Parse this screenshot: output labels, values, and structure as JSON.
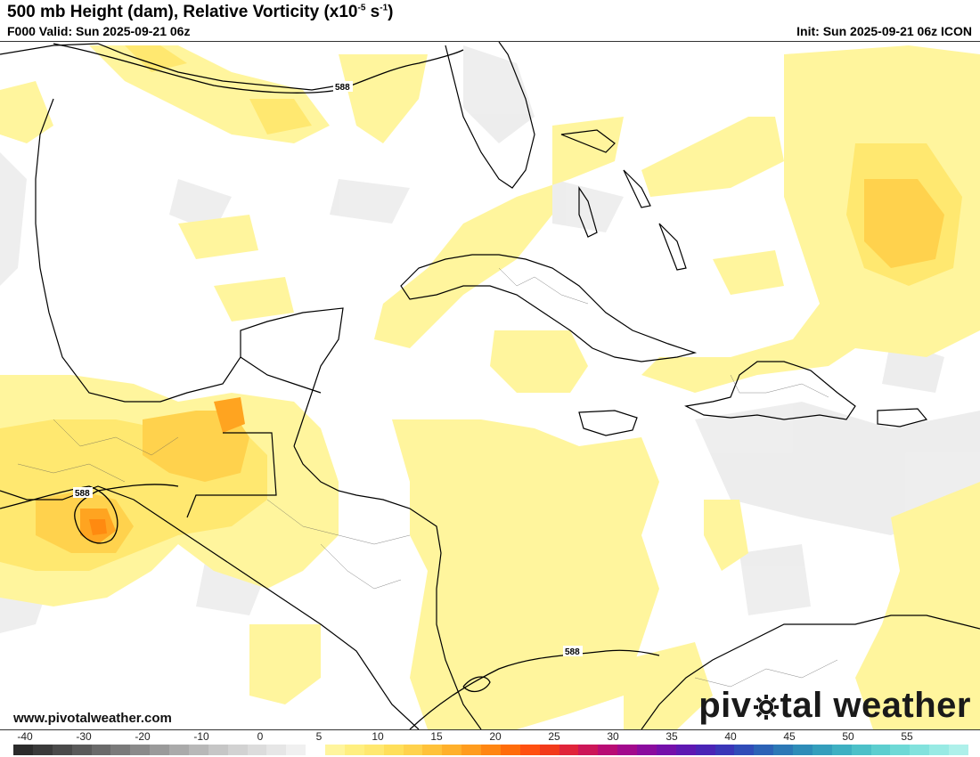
{
  "header": {
    "title": "500 mb Height (dam), Relative Vorticity (x10",
    "title_exp": "-5",
    "title_unit": " s",
    "title_exp2": "-1",
    "title_end": ")",
    "valid": "F000 Valid: Sun 2025-09-21 06z",
    "init": "Init: Sun 2025-09-21 06z ICON"
  },
  "map": {
    "contour_labels": [
      "588",
      "588",
      "588"
    ],
    "shading_colors": {
      "light_yellow": "#fff59d",
      "yellow": "#ffe870",
      "gold": "#ffd24d",
      "orange": "#ffa420",
      "dark_orange": "#ff8a10",
      "light_gray": "#ececec",
      "gray": "#dedede"
    },
    "land_color": "#ffffff",
    "coastline_color": "#000000"
  },
  "footer": {
    "url": "www.pivotalweather.com",
    "brand_left": "piv",
    "brand_right": "tal weather",
    "brand_icon": "sun-gear-icon"
  },
  "colorbar": {
    "ticks": [
      "-40",
      "-30",
      "-20",
      "-10",
      "0",
      "5",
      "10",
      "15",
      "20",
      "25",
      "30",
      "35",
      "40",
      "45",
      "50",
      "55"
    ],
    "colors": [
      "#2b2b2b",
      "#3a3a3a",
      "#4a4a4a",
      "#5a5a5a",
      "#6a6a6a",
      "#7a7a7a",
      "#8a8a8a",
      "#9a9a9a",
      "#aaaaaa",
      "#b8b8b8",
      "#c6c6c6",
      "#d2d2d2",
      "#dcdcdc",
      "#e6e6e6",
      "#f0f0f0",
      "#ffffff",
      "#fff59d",
      "#ffef80",
      "#ffe870",
      "#ffdf5a",
      "#ffd24d",
      "#ffc23a",
      "#ffb02b",
      "#ff9c1e",
      "#ff8612",
      "#ff6c0a",
      "#ff5010",
      "#f23a1a",
      "#e0243a",
      "#cc1658",
      "#b80c74",
      "#a20a8c",
      "#8a0c9e",
      "#7410aa",
      "#5e18b2",
      "#4a24b6",
      "#3a36b8",
      "#304cb8",
      "#2c62b6",
      "#2c78b6",
      "#2e8cb8",
      "#349ebc",
      "#3eb0c2",
      "#4cc0c8",
      "#5ccecf",
      "#6ed9d6",
      "#82e2dd",
      "#98eae4",
      "#aef0ea"
    ]
  }
}
